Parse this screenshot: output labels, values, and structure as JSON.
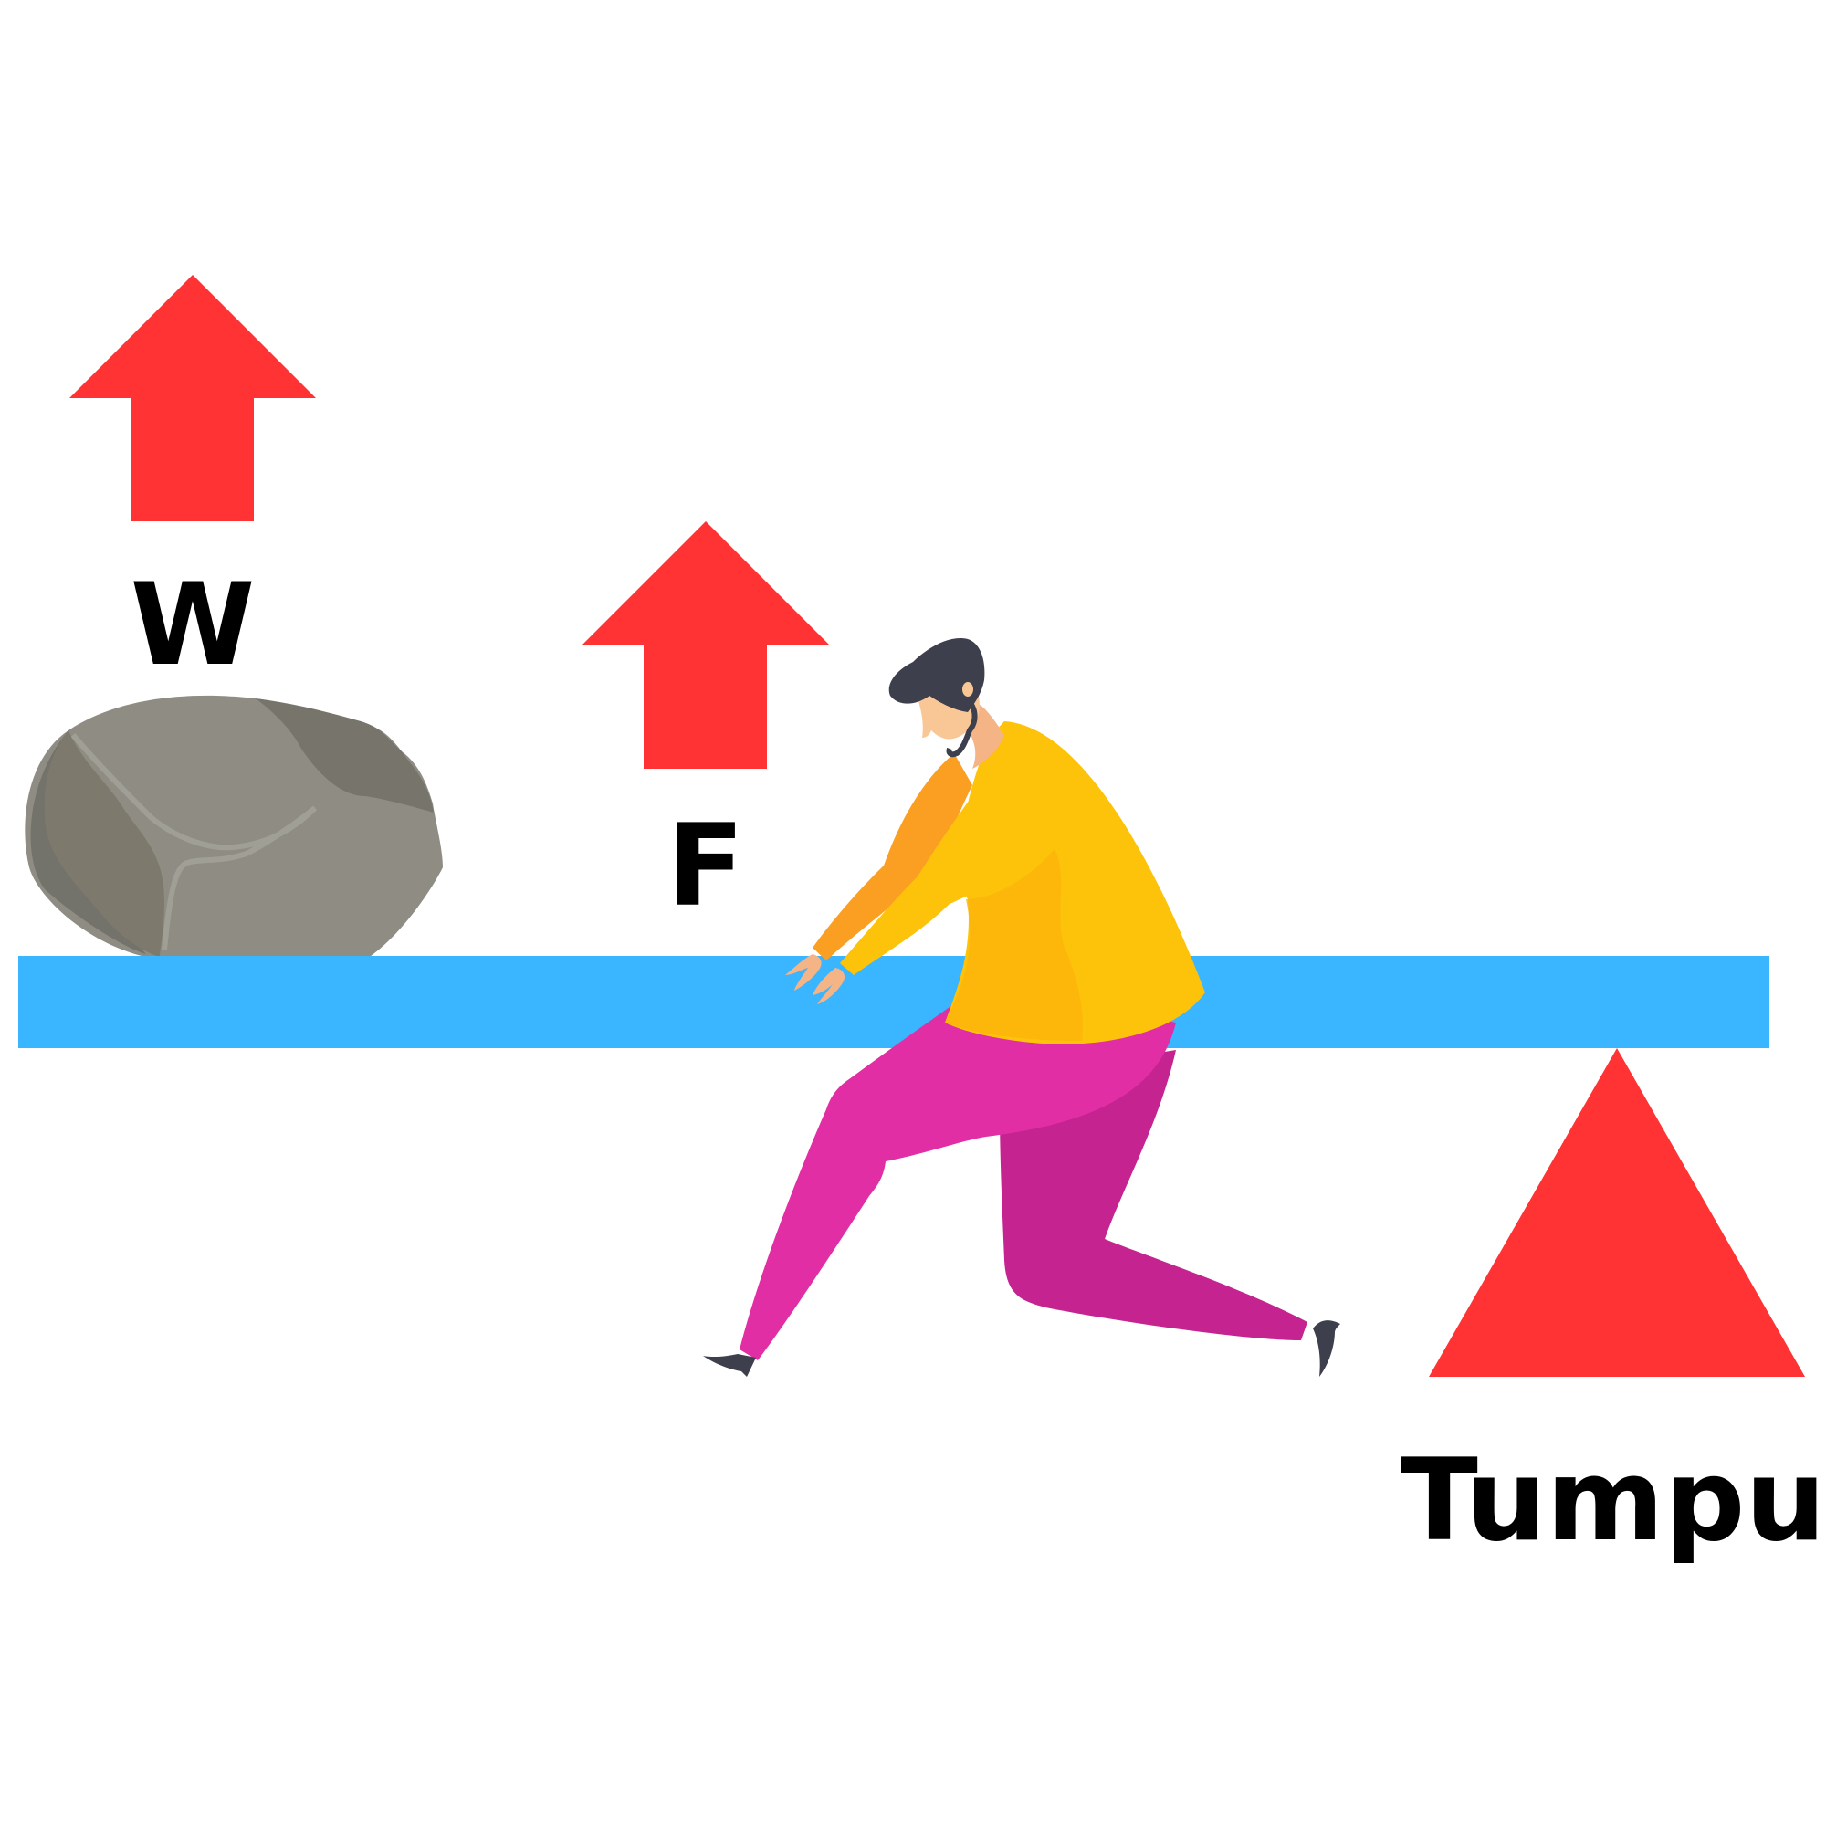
{
  "labels": {
    "weight": "W",
    "force": "F",
    "fulcrum": "Tumpu"
  },
  "colors": {
    "arrow": "#FF3333",
    "fulcrum": "#FF3333",
    "beam": "#3AB5FF",
    "rock": "#8E8C83",
    "shirt": "#FDC20A",
    "pants": "#E22EA4",
    "hair": "#3E3F4C",
    "skin": "#F4B486"
  },
  "icons": {
    "rock": "rock-icon",
    "person": "person-pushing-icon"
  }
}
